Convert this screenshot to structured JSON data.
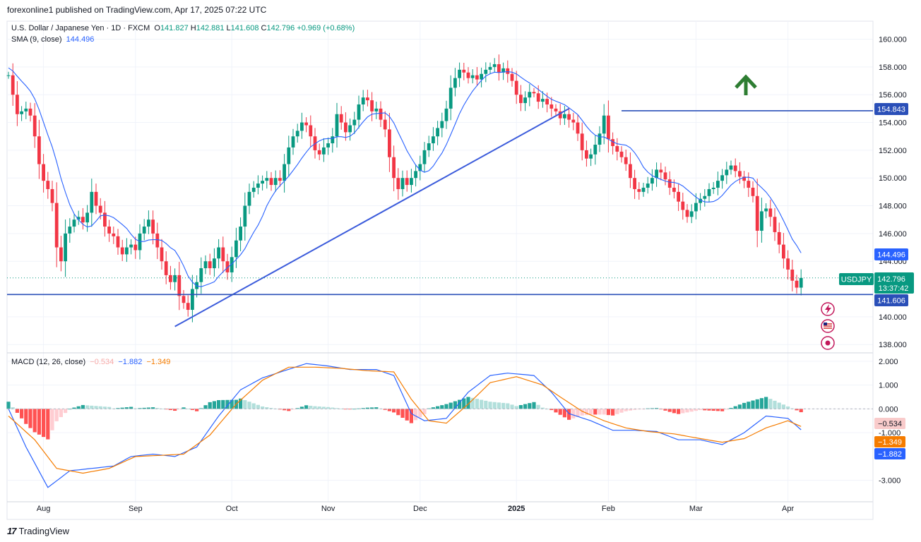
{
  "header": {
    "published": "forexonline1 published on TradingView.com, Apr 17, 2025 07:22 UTC"
  },
  "footer": {
    "logo": "17",
    "brand": "TradingView"
  },
  "legend": {
    "symbol": "U.S. Dollar / Japanese Yen · 1D · FXCM",
    "open_label": "O",
    "open": "141.827",
    "high_label": "H",
    "high": "142.881",
    "low_label": "L",
    "low": "141.608",
    "close_label": "C",
    "close": "142.796",
    "change": "+0.969 (+0.68%)",
    "sma_label": "SMA (9, close)",
    "sma_value": "144.496",
    "macd_label": "MACD (12, 26, close)",
    "macd_hist": "−0.534",
    "macd_line": "−1.882",
    "macd_signal": "−1.349"
  },
  "badges": {
    "level_high": "154.843",
    "sma": "144.496",
    "symbol": "USDJPY",
    "price": "142.796",
    "timer": "13:37:42",
    "level_low": "141.606",
    "macd_hist": "−0.534",
    "macd_signal": "−1.349",
    "macd_line": "−1.882"
  },
  "colors": {
    "up": "#089981",
    "down": "#f23645",
    "sma": "#2962ff",
    "signal": "#f57c00",
    "hline": "#2a4fb8",
    "arrow": "#2e7d32"
  },
  "chart_data": [
    {
      "type": "candlestick",
      "title": "U.S. Dollar / Japanese Yen · 1D · FXCM",
      "y_ticks": [
        "160.000",
        "158.000",
        "156.000",
        "154.000",
        "152.000",
        "150.000",
        "148.000",
        "146.000",
        "144.000",
        "140.000",
        "138.000"
      ],
      "y_tick_values": [
        160,
        158,
        156,
        154,
        152,
        150,
        148,
        146,
        144,
        140,
        138
      ],
      "x_ticks": [
        "Aug",
        "Sep",
        "Oct",
        "Nov",
        "Dec",
        "2025",
        "Feb",
        "Mar",
        "Apr"
      ],
      "x_tick_index": [
        8,
        29,
        51,
        73,
        94,
        116,
        137,
        157,
        178
      ],
      "ylim": [
        137.4,
        161.3
      ],
      "start_price": 157.4,
      "closes": [
        157.4,
        156,
        154.6,
        154.8,
        155,
        154.5,
        153,
        151,
        149.8,
        149.2,
        148.2,
        145,
        144,
        146,
        146.5,
        147,
        147.2,
        146.8,
        147.5,
        149,
        148,
        147.5,
        146.5,
        146,
        145.8,
        145,
        144.5,
        145,
        145.2,
        144.8,
        146,
        146.5,
        147,
        146,
        145,
        144,
        143,
        142.5,
        143,
        141.5,
        141,
        140.5,
        142,
        142.5,
        143.5,
        144,
        143.5,
        144.2,
        145,
        144,
        143.2,
        144.3,
        145.5,
        146.5,
        148,
        149,
        149.3,
        149.6,
        149.8,
        150,
        149.5,
        150,
        149.8,
        151,
        152.2,
        153,
        153.4,
        154,
        153.8,
        153,
        152,
        151.7,
        152.2,
        152.5,
        153,
        154.6,
        154,
        153.3,
        153.8,
        154.2,
        155.3,
        155.8,
        155.6,
        154.8,
        155,
        154.2,
        153.5,
        151.5,
        150,
        149.2,
        150,
        149.5,
        150,
        150.5,
        151,
        152,
        152.5,
        153,
        153.6,
        154.1,
        155,
        156.5,
        157.2,
        157.8,
        157.6,
        157.2,
        157.4,
        157.1,
        157.5,
        157.8,
        158,
        158.2,
        157.6,
        157.9,
        157.5,
        157,
        156,
        155.4,
        155.8,
        156.2,
        156.1,
        155.5,
        155.7,
        155.3,
        155,
        154.8,
        154.3,
        154.6,
        154.2,
        154,
        153.2,
        152,
        151.4,
        151.7,
        152.4,
        153.2,
        154.5,
        152.8,
        152.3,
        151.9,
        151.5,
        151,
        150,
        149.2,
        149,
        149.3,
        149.6,
        150,
        150.6,
        150.4,
        149.9,
        149.3,
        149,
        148.3,
        147.7,
        147.2,
        147.6,
        148.2,
        148.5,
        148.7,
        149.2,
        149.3,
        149.8,
        150.2,
        150.6,
        150.9,
        150.5,
        150.1,
        149.8,
        149.3,
        148.7,
        146.2,
        147.6,
        147.8,
        147.2,
        146.1,
        145.2,
        144.2,
        143.4,
        142.6,
        142.1,
        142.8
      ],
      "sma": {
        "name": "SMA (9, close)",
        "color": "#2962ff",
        "last": 144.496
      },
      "trendlines": [
        {
          "from": {
            "index": 38,
            "price": 139.3
          },
          "to": {
            "index": 128,
            "price": 155.0
          }
        }
      ],
      "horizontal_levels": [
        {
          "price": 154.843,
          "from_index": 140
        },
        {
          "price": 141.606,
          "from_index": 0
        }
      ]
    },
    {
      "type": "macd",
      "title": "MACD (12, 26, close)",
      "y_ticks": [
        "2.000",
        "1.000",
        "0.000",
        "-1.000",
        "-3.000"
      ],
      "y_tick_values": [
        2,
        1,
        0,
        -1,
        -3
      ],
      "ylim": [
        -3.9,
        2.35
      ],
      "macd_anchors": [
        [
          0,
          0
        ],
        [
          4,
          -1.6
        ],
        [
          9,
          -3.3
        ],
        [
          14,
          -2.6
        ],
        [
          19,
          -2.5
        ],
        [
          24,
          -2.4
        ],
        [
          28,
          -2.0
        ],
        [
          33,
          -1.9
        ],
        [
          38,
          -2.0
        ],
        [
          43,
          -1.6
        ],
        [
          48,
          -0.3
        ],
        [
          53,
          0.8
        ],
        [
          58,
          1.3
        ],
        [
          63,
          1.6
        ],
        [
          68,
          1.9
        ],
        [
          73,
          1.8
        ],
        [
          78,
          1.65
        ],
        [
          84,
          1.65
        ],
        [
          88,
          1.4
        ],
        [
          92,
          -0.2
        ],
        [
          95,
          -0.5
        ],
        [
          100,
          -0.4
        ],
        [
          105,
          0.7
        ],
        [
          110,
          1.4
        ],
        [
          114,
          1.5
        ],
        [
          120,
          1.4
        ],
        [
          124,
          0.7
        ],
        [
          128,
          -0.2
        ],
        [
          133,
          -0.5
        ],
        [
          138,
          -0.9
        ],
        [
          143,
          -0.9
        ],
        [
          148,
          -0.95
        ],
        [
          153,
          -1.3
        ],
        [
          158,
          -1.3
        ],
        [
          163,
          -1.5
        ],
        [
          168,
          -1.0
        ],
        [
          173,
          -0.3
        ],
        [
          178,
          -0.4
        ],
        [
          183,
          -1.2
        ],
        [
          188,
          -1.882
        ]
      ],
      "signal_anchors": [
        [
          0,
          -0.3
        ],
        [
          6,
          -1.3
        ],
        [
          11,
          -2.5
        ],
        [
          17,
          -2.7
        ],
        [
          23,
          -2.5
        ],
        [
          29,
          -2.0
        ],
        [
          35,
          -1.95
        ],
        [
          40,
          -1.9
        ],
        [
          46,
          -1.1
        ],
        [
          52,
          0.2
        ],
        [
          58,
          1.2
        ],
        [
          64,
          1.75
        ],
        [
          70,
          1.75
        ],
        [
          76,
          1.7
        ],
        [
          82,
          1.6
        ],
        [
          88,
          1.55
        ],
        [
          92,
          0.4
        ],
        [
          96,
          -0.5
        ],
        [
          100,
          -0.6
        ],
        [
          105,
          0.2
        ],
        [
          110,
          1.1
        ],
        [
          116,
          1.35
        ],
        [
          122,
          1.0
        ],
        [
          126,
          0.5
        ],
        [
          131,
          -0.1
        ],
        [
          136,
          -0.5
        ],
        [
          141,
          -0.8
        ],
        [
          146,
          -0.95
        ],
        [
          152,
          -1.05
        ],
        [
          158,
          -1.25
        ],
        [
          163,
          -1.4
        ],
        [
          168,
          -1.25
        ],
        [
          173,
          -0.8
        ],
        [
          178,
          -0.5
        ],
        [
          183,
          -0.9
        ],
        [
          188,
          -1.349
        ]
      ],
      "last": {
        "hist": -0.534,
        "macd": -1.882,
        "signal": -1.349
      }
    }
  ]
}
